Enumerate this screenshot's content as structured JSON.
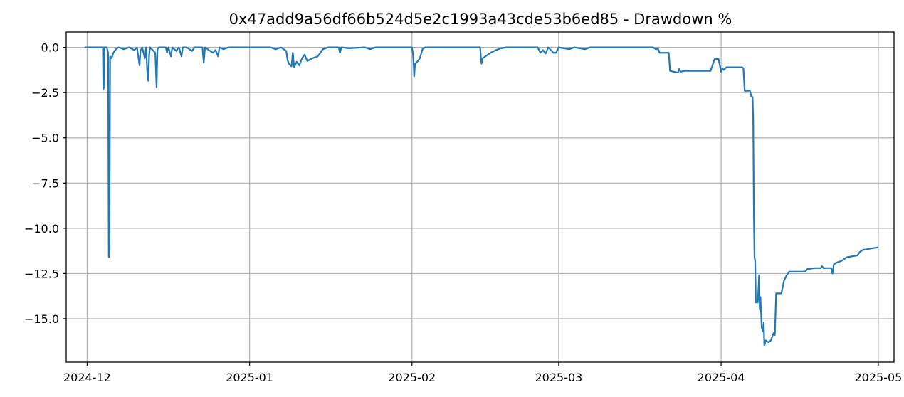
{
  "chart_data": {
    "type": "line",
    "title": "0x47add9a56df66b524d5e2c1993a43cde53b6ed85 - Drawdown %",
    "xlabel": "",
    "ylabel": "",
    "x_type": "date",
    "xlim": [
      "2024-11-27",
      "2025-05-04"
    ],
    "ylim": [
      -17.4,
      0.85
    ],
    "grid": true,
    "x_ticks": [
      "2024-12-01",
      "2025-01-01",
      "2025-02-01",
      "2025-03-01",
      "2025-04-01",
      "2025-05-01"
    ],
    "x_tick_labels": [
      "2024-12",
      "2025-01",
      "2025-02",
      "2025-03",
      "2025-04",
      "2025-05"
    ],
    "y_ticks": [
      0.0,
      -2.5,
      -5.0,
      -7.5,
      -10.0,
      -12.5,
      -15.0
    ],
    "y_tick_labels": [
      "0.0",
      "−2.5",
      "−5.0",
      "−7.5",
      "−10.0",
      "−12.5",
      "−15.0"
    ],
    "series": [
      {
        "color": "#1f77b4",
        "points": [
          [
            "2024-11-30T12:00",
            0.0
          ],
          [
            "2024-12-04T00:00",
            0.0
          ],
          [
            "2024-12-04T02:00",
            -2.3
          ],
          [
            "2024-12-04T04:00",
            -2.25
          ],
          [
            "2024-12-04T06:00",
            0.0
          ],
          [
            "2024-12-04T18:00",
            0.0
          ],
          [
            "2024-12-05T00:00",
            -0.3
          ],
          [
            "2024-12-05T03:00",
            -11.6
          ],
          [
            "2024-12-05T06:00",
            -11.2
          ],
          [
            "2024-12-05T09:00",
            -0.5
          ],
          [
            "2024-12-05T16:00",
            -0.6
          ],
          [
            "2024-12-06T00:00",
            -0.3
          ],
          [
            "2024-12-06T12:00",
            -0.1
          ],
          [
            "2024-12-07T00:00",
            0.0
          ],
          [
            "2024-12-08T00:00",
            -0.1
          ],
          [
            "2024-12-09T00:00",
            0.0
          ],
          [
            "2024-12-10T00:00",
            -0.15
          ],
          [
            "2024-12-10T12:00",
            0.0
          ],
          [
            "2024-12-11T00:00",
            -1.0
          ],
          [
            "2024-12-11T04:00",
            -0.2
          ],
          [
            "2024-12-11T12:00",
            0.0
          ],
          [
            "2024-12-12T00:00",
            -0.6
          ],
          [
            "2024-12-12T06:00",
            0.0
          ],
          [
            "2024-12-12T12:00",
            -1.5
          ],
          [
            "2024-12-12T16:00",
            -1.85
          ],
          [
            "2024-12-12T20:00",
            -0.4
          ],
          [
            "2024-12-13T00:00",
            0.0
          ],
          [
            "2024-12-14T00:00",
            -0.3
          ],
          [
            "2024-12-14T06:00",
            -2.2
          ],
          [
            "2024-12-14T10:00",
            -0.1
          ],
          [
            "2024-12-14T16:00",
            0.0
          ],
          [
            "2024-12-16T00:00",
            0.0
          ],
          [
            "2024-12-16T06:00",
            -0.3
          ],
          [
            "2024-12-16T12:00",
            0.0
          ],
          [
            "2024-12-17T00:00",
            -0.5
          ],
          [
            "2024-12-17T06:00",
            0.0
          ],
          [
            "2024-12-18T00:00",
            -0.2
          ],
          [
            "2024-12-18T12:00",
            0.0
          ],
          [
            "2024-12-19T00:00",
            -0.5
          ],
          [
            "2024-12-19T06:00",
            0.0
          ],
          [
            "2024-12-20T00:00",
            0.0
          ],
          [
            "2024-12-21T00:00",
            -0.2
          ],
          [
            "2024-12-21T12:00",
            0.0
          ],
          [
            "2024-12-23T00:00",
            0.0
          ],
          [
            "2024-12-23T06:00",
            -0.85
          ],
          [
            "2024-12-23T12:00",
            0.0
          ],
          [
            "2024-12-25T00:00",
            -0.3
          ],
          [
            "2024-12-25T12:00",
            -0.15
          ],
          [
            "2024-12-26T00:00",
            -0.5
          ],
          [
            "2024-12-26T06:00",
            0.0
          ],
          [
            "2024-12-27T00:00",
            -0.1
          ],
          [
            "2024-12-28T00:00",
            0.0
          ],
          [
            "2025-01-05T00:00",
            0.0
          ],
          [
            "2025-01-06T00:00",
            -0.1
          ],
          [
            "2025-01-07T00:00",
            0.0
          ],
          [
            "2025-01-08T00:00",
            -0.2
          ],
          [
            "2025-01-08T06:00",
            -0.7
          ],
          [
            "2025-01-08T12:00",
            -0.9
          ],
          [
            "2025-01-09T00:00",
            -1.05
          ],
          [
            "2025-01-09T06:00",
            -0.3
          ],
          [
            "2025-01-09T12:00",
            -1.1
          ],
          [
            "2025-01-10T00:00",
            -0.8
          ],
          [
            "2025-01-10T12:00",
            -1.0
          ],
          [
            "2025-01-11T00:00",
            -0.6
          ],
          [
            "2025-01-11T12:00",
            -0.4
          ],
          [
            "2025-01-12T00:00",
            -0.75
          ],
          [
            "2025-01-13T00:00",
            -0.6
          ],
          [
            "2025-01-14T00:00",
            -0.5
          ],
          [
            "2025-01-14T12:00",
            -0.3
          ],
          [
            "2025-01-15T00:00",
            -0.1
          ],
          [
            "2025-01-16T00:00",
            0.0
          ],
          [
            "2025-01-18T00:00",
            0.0
          ],
          [
            "2025-01-18T06:00",
            -0.3
          ],
          [
            "2025-01-18T12:00",
            0.0
          ],
          [
            "2025-01-20T00:00",
            -0.05
          ],
          [
            "2025-01-23T00:00",
            0.0
          ],
          [
            "2025-01-24T00:00",
            -0.1
          ],
          [
            "2025-01-25T00:00",
            0.0
          ],
          [
            "2025-02-01T00:00",
            0.0
          ],
          [
            "2025-02-01T06:00",
            -0.5
          ],
          [
            "2025-02-01T10:00",
            -1.6
          ],
          [
            "2025-02-01T14:00",
            -0.9
          ],
          [
            "2025-02-02T00:00",
            -0.8
          ],
          [
            "2025-02-02T12:00",
            -0.6
          ],
          [
            "2025-02-03T00:00",
            -0.1
          ],
          [
            "2025-02-03T12:00",
            0.0
          ],
          [
            "2025-02-14T00:00",
            0.0
          ],
          [
            "2025-02-14T06:00",
            -0.9
          ],
          [
            "2025-02-14T12:00",
            -0.6
          ],
          [
            "2025-02-15T00:00",
            -0.5
          ],
          [
            "2025-02-16T00:00",
            -0.3
          ],
          [
            "2025-02-17T00:00",
            -0.15
          ],
          [
            "2025-02-18T00:00",
            -0.05
          ],
          [
            "2025-02-19T00:00",
            0.0
          ],
          [
            "2025-02-25T00:00",
            0.0
          ],
          [
            "2025-02-25T12:00",
            -0.3
          ],
          [
            "2025-02-26T00:00",
            -0.15
          ],
          [
            "2025-02-26T12:00",
            -0.35
          ],
          [
            "2025-02-27T00:00",
            0.0
          ],
          [
            "2025-02-28T00:00",
            -0.3
          ],
          [
            "2025-02-28T12:00",
            -0.3
          ],
          [
            "2025-03-01T00:00",
            0.0
          ],
          [
            "2025-03-03T00:00",
            -0.1
          ],
          [
            "2025-03-04T00:00",
            0.0
          ],
          [
            "2025-03-06T00:00",
            -0.1
          ],
          [
            "2025-03-07T00:00",
            0.0
          ],
          [
            "2025-03-19T00:00",
            0.0
          ],
          [
            "2025-03-19T12:00",
            -0.1
          ],
          [
            "2025-03-20T00:00",
            -0.1
          ],
          [
            "2025-03-20T06:00",
            -0.3
          ],
          [
            "2025-03-22T00:00",
            -0.3
          ],
          [
            "2025-03-22T06:00",
            -1.3
          ],
          [
            "2025-03-23T18:00",
            -1.4
          ],
          [
            "2025-03-24T00:00",
            -1.2
          ],
          [
            "2025-03-24T06:00",
            -1.35
          ],
          [
            "2025-03-25T00:00",
            -1.3
          ],
          [
            "2025-03-30T00:00",
            -1.3
          ],
          [
            "2025-03-30T18:00",
            -0.65
          ],
          [
            "2025-03-31T12:00",
            -0.65
          ],
          [
            "2025-04-01T00:00",
            -1.35
          ],
          [
            "2025-04-01T06:00",
            -1.15
          ],
          [
            "2025-04-01T12:00",
            -1.25
          ],
          [
            "2025-04-02T00:00",
            -1.1
          ],
          [
            "2025-04-05T00:00",
            -1.1
          ],
          [
            "2025-04-05T06:00",
            -1.15
          ],
          [
            "2025-04-05T12:00",
            -2.4
          ],
          [
            "2025-04-06T12:00",
            -2.4
          ],
          [
            "2025-04-06T18:00",
            -2.7
          ],
          [
            "2025-04-07T00:00",
            -2.75
          ],
          [
            "2025-04-07T03:00",
            -4.0
          ],
          [
            "2025-04-07T06:00",
            -9.2
          ],
          [
            "2025-04-07T09:00",
            -11.6
          ],
          [
            "2025-04-07T12:00",
            -11.8
          ],
          [
            "2025-04-07T15:00",
            -14.1
          ],
          [
            "2025-04-08T00:00",
            -14.1
          ],
          [
            "2025-04-08T06:00",
            -12.6
          ],
          [
            "2025-04-08T09:00",
            -14.5
          ],
          [
            "2025-04-08T12:00",
            -13.8
          ],
          [
            "2025-04-08T18:00",
            -15.5
          ],
          [
            "2025-04-09T00:00",
            -15.7
          ],
          [
            "2025-04-09T03:00",
            -15.2
          ],
          [
            "2025-04-09T06:00",
            -16.5
          ],
          [
            "2025-04-09T12:00",
            -16.2
          ],
          [
            "2025-04-10T00:00",
            -16.3
          ],
          [
            "2025-04-10T12:00",
            -16.2
          ],
          [
            "2025-04-11T00:00",
            -15.8
          ],
          [
            "2025-04-11T06:00",
            -15.9
          ],
          [
            "2025-04-11T12:00",
            -13.6
          ],
          [
            "2025-04-12T12:00",
            -13.6
          ],
          [
            "2025-04-13T00:00",
            -12.9
          ],
          [
            "2025-04-13T12:00",
            -12.6
          ],
          [
            "2025-04-14T00:00",
            -12.4
          ],
          [
            "2025-04-15T00:00",
            -12.4
          ],
          [
            "2025-04-17T00:00",
            -12.4
          ],
          [
            "2025-04-17T12:00",
            -12.25
          ],
          [
            "2025-04-19T00:00",
            -12.2
          ],
          [
            "2025-04-20T00:00",
            -12.2
          ],
          [
            "2025-04-20T06:00",
            -12.1
          ],
          [
            "2025-04-20T12:00",
            -12.2
          ],
          [
            "2025-04-22T00:00",
            -12.2
          ],
          [
            "2025-04-22T06:00",
            -12.5
          ],
          [
            "2025-04-22T12:00",
            -12.0
          ],
          [
            "2025-04-23T00:00",
            -11.9
          ],
          [
            "2025-04-24T00:00",
            -11.8
          ],
          [
            "2025-04-24T12:00",
            -11.7
          ],
          [
            "2025-04-25T00:00",
            -11.6
          ],
          [
            "2025-04-26T00:00",
            -11.55
          ],
          [
            "2025-04-27T00:00",
            -11.5
          ],
          [
            "2025-04-27T12:00",
            -11.3
          ],
          [
            "2025-04-28T00:00",
            -11.2
          ],
          [
            "2025-04-29T00:00",
            -11.15
          ],
          [
            "2025-04-30T00:00",
            -11.1
          ],
          [
            "2025-05-01T00:00",
            -11.05
          ]
        ]
      }
    ]
  }
}
